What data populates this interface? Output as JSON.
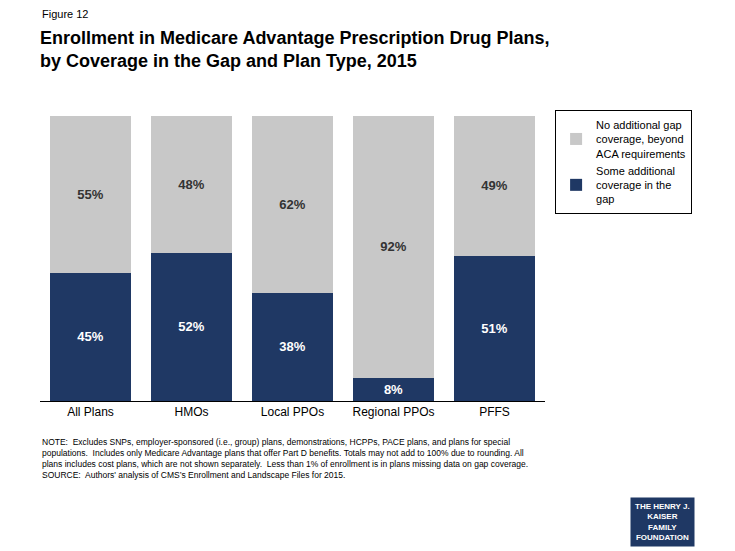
{
  "chart_data": {
    "type": "bar",
    "stacked": true,
    "title": "Enrollment in Medicare Advantage Prescription Drug Plans,\nby Coverage in the Gap and Plan Type, 2015",
    "categories": [
      "All Plans",
      "HMOs",
      "Local PPOs",
      "Regional PPOs",
      "PFFS"
    ],
    "series": [
      {
        "name": "Some additional\ncoverage in the\ngap",
        "color": "#1F3864",
        "values": [
          45,
          52,
          38,
          8,
          51
        ],
        "value_labels": [
          "45%",
          "52%",
          "38%",
          "8%",
          "51%"
        ]
      },
      {
        "name": "No additional gap\ncoverage, beyond\nACA requirements",
        "color": "#C8C8C8",
        "values": [
          55,
          48,
          62,
          92,
          49
        ],
        "value_labels": [
          "55%",
          "48%",
          "62%",
          "92%",
          "49%"
        ]
      }
    ],
    "ylim": [
      0,
      102
    ],
    "tick_labels": "x",
    "grid": false,
    "legend": "right",
    "data_labels": true,
    "annotations": [
      "Figure 12",
      "NOTE:  Excludes SNPs, employer-sponsored (i.e., group) plans, demonstrations, HCPPs, PACE plans, and plans for special\npopulations.  Includes only Medicare Advantage plans that offer Part D benefits. Totals may not add to 100% due to rounding. All\nplans includes cost plans, which are not shown separately.  Less than 1% of enrollment is in plans missing data on gap coverage.\nSOURCE:  Authors' analysis of CMS’s Enrollment and Landscape Files for 2015.",
      "THE HENRY J.\nKAISER\nFAMILY\nFOUNDATION"
    ]
  }
}
